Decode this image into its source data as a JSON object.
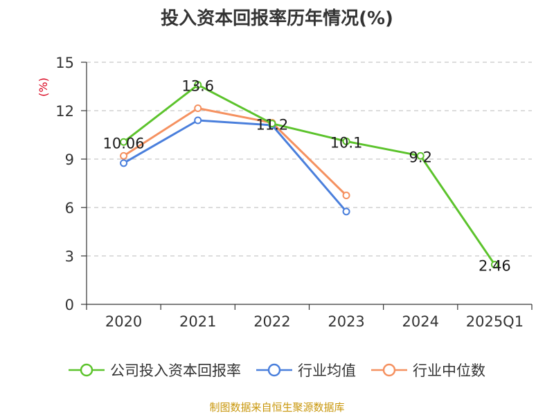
{
  "title": "投入资本回报率历年情况(%)",
  "source": "制图数据来自恒生聚源数据库",
  "colors": {
    "company": "#5cc32c",
    "industry_avg": "#4a7fdc",
    "industry_median": "#f59160",
    "grid": "#c8c8c8",
    "axis": "#333333",
    "unit": "#d9001b",
    "source": "#c8960a"
  },
  "chart_data": {
    "type": "line",
    "title": "投入资本回报率历年情况(%)",
    "ylabel": "(%)",
    "xlabel": "",
    "categories": [
      "2020",
      "2021",
      "2022",
      "2023",
      "2024",
      "2025Q1"
    ],
    "ylim": [
      0,
      15
    ],
    "yticks": [
      0,
      3,
      6,
      9,
      12,
      15
    ],
    "grid": true,
    "legend_position": "bottom",
    "series": [
      {
        "name": "公司投入资本回报率",
        "color": "#5cc32c",
        "values": [
          10.06,
          13.6,
          11.2,
          10.1,
          9.2,
          2.46
        ],
        "show_labels": true
      },
      {
        "name": "行业均值",
        "color": "#4a7fdc",
        "values": [
          8.75,
          11.4,
          11.1,
          5.75,
          null,
          null
        ],
        "show_labels": false
      },
      {
        "name": "行业中位数",
        "color": "#f59160",
        "values": [
          9.2,
          12.15,
          11.25,
          6.75,
          null,
          null
        ],
        "show_labels": false
      }
    ]
  }
}
